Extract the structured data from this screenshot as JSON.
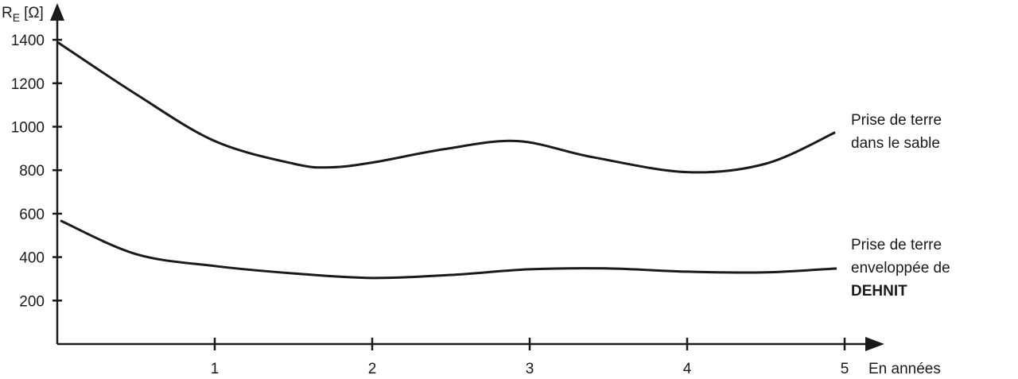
{
  "chart_data": {
    "type": "line",
    "ylabel_main": "R",
    "ylabel_sub": "E",
    "ylabel_unit": "[Ω]",
    "xlabel": "En années",
    "xlim": [
      0,
      5
    ],
    "ylim": [
      0,
      1500
    ],
    "x_ticks": [
      "1",
      "2",
      "3",
      "4",
      "5"
    ],
    "y_ticks": [
      "200",
      "400",
      "600",
      "800",
      "1000",
      "1200",
      "1400"
    ],
    "grid": false,
    "series": [
      {
        "label_lines": [
          "Prise de terre",
          "dans le sable"
        ],
        "x": [
          0,
          0.5,
          1,
          1.5,
          1.73,
          2,
          2.46,
          2.92,
          3.4,
          4,
          4.5,
          4.94
        ],
        "y": [
          1390,
          1150,
          934,
          830,
          813,
          835,
          897,
          934,
          860,
          791,
          830,
          974
        ]
      },
      {
        "label_lines": [
          "Prise de terre",
          "enveloppée de",
          "DEHNIT"
        ],
        "x": [
          0.02,
          0.5,
          1,
          1.5,
          2,
          2.5,
          3,
          3.5,
          4,
          4.5,
          4.95
        ],
        "y": [
          568,
          414,
          359,
          325,
          304,
          318,
          344,
          348,
          333,
          330,
          348
        ]
      }
    ]
  }
}
